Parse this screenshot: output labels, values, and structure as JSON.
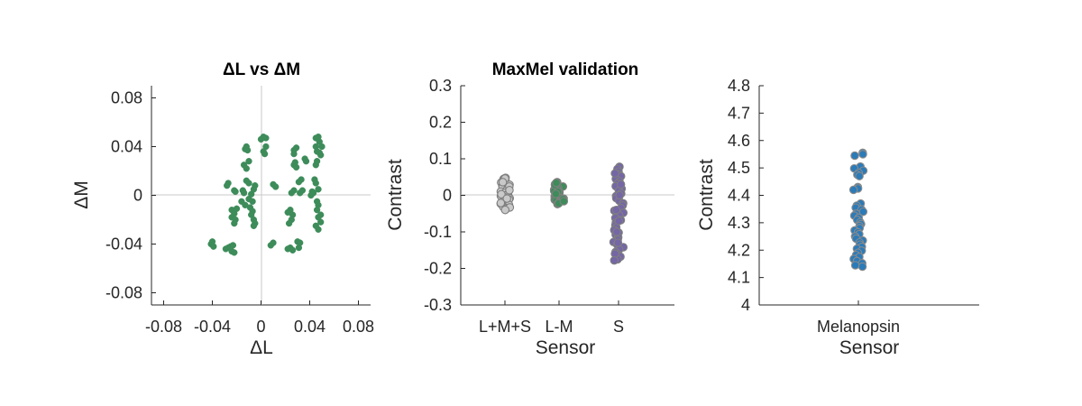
{
  "chart_data": [
    {
      "type": "scatter",
      "title": "ΔL vs ΔM",
      "xlabel": "ΔL",
      "ylabel": "ΔM",
      "xlim": [
        -0.09,
        0.09
      ],
      "ylim": [
        -0.09,
        0.09
      ],
      "xticks": [
        -0.08,
        -0.04,
        0,
        0.04,
        0.08
      ],
      "xtick_labels": [
        "-0.08",
        "-0.04",
        "0",
        "0.04",
        "0.08"
      ],
      "yticks": [
        -0.08,
        -0.04,
        0,
        0.04,
        0.08
      ],
      "ytick_labels": [
        "-0.08",
        "-0.04",
        "0",
        "0.04",
        "0.08"
      ],
      "reference_lines": [
        "x=0",
        "y=0"
      ],
      "grid": false,
      "series": [
        {
          "color": "#3d8c5a",
          "points": [
            [
              -0.041,
              -0.04
            ],
            [
              -0.039,
              -0.042
            ],
            [
              -0.04,
              -0.038
            ],
            [
              -0.029,
              -0.044
            ],
            [
              -0.027,
              -0.043
            ],
            [
              -0.025,
              -0.042
            ],
            [
              -0.024,
              -0.046
            ],
            [
              -0.022,
              -0.047
            ],
            [
              -0.023,
              -0.041
            ],
            [
              -0.028,
              0.008
            ],
            [
              -0.027,
              0.01
            ],
            [
              -0.022,
              0.004
            ],
            [
              -0.021,
              0.003
            ],
            [
              -0.015,
              0.004
            ],
            [
              -0.014,
              0.002
            ],
            [
              -0.024,
              -0.012
            ],
            [
              -0.022,
              -0.015
            ],
            [
              -0.024,
              -0.018
            ],
            [
              -0.021,
              -0.02
            ],
            [
              -0.022,
              -0.023
            ],
            [
              -0.02,
              -0.011
            ],
            [
              -0.016,
              -0.005
            ],
            [
              -0.013,
              -0.008
            ],
            [
              -0.013,
              0.038
            ],
            [
              -0.012,
              0.04
            ],
            [
              -0.011,
              0.037
            ],
            [
              -0.014,
              0.025
            ],
            [
              -0.012,
              0.022
            ],
            [
              -0.01,
              0.028
            ],
            [
              -0.012,
              0.012
            ],
            [
              -0.01,
              0.01
            ],
            [
              -0.01,
              -0.003
            ],
            [
              -0.008,
              0.001
            ],
            [
              -0.007,
              -0.005
            ],
            [
              -0.009,
              -0.01
            ],
            [
              -0.007,
              -0.013
            ],
            [
              -0.008,
              -0.016
            ],
            [
              -0.006,
              -0.02
            ],
            [
              -0.005,
              -0.023
            ],
            [
              -0.006,
              -0.025
            ],
            [
              -0.006,
              0.005
            ],
            [
              -0.005,
              0.008
            ],
            [
              0.0,
              0.046
            ],
            [
              0.002,
              0.048
            ],
            [
              0.004,
              0.047
            ],
            [
              0.002,
              0.036
            ],
            [
              0.003,
              0.034
            ],
            [
              0.004,
              0.04
            ],
            [
              0.008,
              -0.041
            ],
            [
              0.01,
              -0.039
            ],
            [
              0.01,
              0.009
            ],
            [
              0.012,
              0.007
            ],
            [
              0.022,
              -0.044
            ],
            [
              0.024,
              -0.043
            ],
            [
              0.026,
              -0.045
            ],
            [
              0.024,
              -0.012
            ],
            [
              0.022,
              -0.014
            ],
            [
              0.026,
              -0.016
            ],
            [
              0.025,
              -0.02
            ],
            [
              0.023,
              -0.023
            ],
            [
              0.025,
              0.002
            ],
            [
              0.027,
              0.004
            ],
            [
              0.027,
              0.037
            ],
            [
              0.029,
              0.039
            ],
            [
              0.027,
              0.034
            ],
            [
              0.027,
              0.025
            ],
            [
              0.028,
              0.027
            ],
            [
              0.029,
              0.023
            ],
            [
              0.031,
              0.011
            ],
            [
              0.033,
              0.013
            ],
            [
              0.032,
              0.002
            ],
            [
              0.034,
              0.004
            ],
            [
              0.03,
              -0.038
            ],
            [
              0.032,
              -0.039
            ],
            [
              0.031,
              -0.043
            ],
            [
              0.036,
              0.03
            ],
            [
              0.037,
              0.028
            ],
            [
              0.041,
              0.0
            ],
            [
              0.043,
              0.002
            ],
            [
              0.042,
              0.003
            ],
            [
              0.045,
              0.047
            ],
            [
              0.047,
              0.048
            ],
            [
              0.048,
              0.044
            ],
            [
              0.048,
              0.035
            ],
            [
              0.049,
              0.033
            ],
            [
              0.05,
              0.04
            ],
            [
              0.045,
              0.04
            ],
            [
              0.046,
              0.036
            ],
            [
              0.045,
              0.025
            ],
            [
              0.046,
              0.028
            ],
            [
              0.044,
              0.013
            ],
            [
              0.045,
              0.01
            ],
            [
              0.047,
              0.005
            ],
            [
              0.046,
              -0.005
            ],
            [
              0.047,
              -0.008
            ],
            [
              0.046,
              -0.012
            ],
            [
              0.047,
              -0.018
            ],
            [
              0.049,
              -0.016
            ],
            [
              0.045,
              -0.025
            ],
            [
              0.047,
              -0.028
            ],
            [
              0.049,
              -0.022
            ]
          ]
        }
      ]
    },
    {
      "type": "strip",
      "title": "MaxMel validation",
      "xlabel": "Sensor",
      "ylabel": "Contrast",
      "categories": [
        "L+M+S",
        "L-M",
        "S"
      ],
      "ylim": [
        -0.3,
        0.3
      ],
      "yticks": [
        -0.3,
        -0.2,
        -0.1,
        0,
        0.1,
        0.2,
        0.3
      ],
      "ytick_labels": [
        "-0.3",
        "-0.2",
        "-0.1",
        "0",
        "0.1",
        "0.2",
        "0.3"
      ],
      "reference_lines": [
        "y=0"
      ],
      "grid": false,
      "series": [
        {
          "category": "L+M+S",
          "color": "#c9c9c9",
          "edge_color": "#7f7f7f",
          "values": [
            0.048,
            0.045,
            0.042,
            0.038,
            0.035,
            0.032,
            0.029,
            0.026,
            0.022,
            0.019,
            0.016,
            0.013,
            0.01,
            0.007,
            0.004,
            0.001,
            -0.002,
            -0.005,
            -0.008,
            -0.011,
            -0.014,
            -0.017,
            -0.02,
            -0.023,
            -0.026,
            -0.029,
            -0.032,
            -0.035,
            -0.038,
            0.046,
            0.036,
            0.024,
            0.014,
            0.003,
            -0.009,
            -0.021,
            -0.033,
            -0.04
          ]
        },
        {
          "category": "L-M",
          "color": "#3d8c5a",
          "edge_color": "#7f7f7f",
          "values": [
            0.036,
            0.033,
            0.03,
            0.027,
            0.024,
            0.021,
            0.018,
            0.015,
            0.012,
            0.009,
            0.006,
            0.003,
            0.0,
            -0.003,
            -0.006,
            -0.009,
            -0.012,
            -0.015,
            -0.018,
            -0.021,
            -0.024,
            0.028,
            0.01,
            -0.01,
            -0.022,
            0.034,
            0.004,
            -0.016
          ]
        },
        {
          "category": "S",
          "color": "#7566a6",
          "edge_color": "#7f7f7f",
          "values": [
            0.078,
            0.072,
            0.065,
            0.058,
            0.052,
            0.045,
            0.038,
            0.032,
            0.025,
            0.018,
            0.012,
            0.005,
            -0.002,
            -0.008,
            -0.015,
            -0.022,
            -0.028,
            -0.035,
            -0.042,
            -0.048,
            -0.055,
            -0.062,
            -0.068,
            -0.075,
            -0.082,
            -0.088,
            -0.095,
            -0.102,
            -0.108,
            -0.115,
            -0.122,
            -0.128,
            -0.135,
            -0.142,
            -0.148,
            -0.155,
            -0.162,
            -0.168,
            -0.175,
            0.06,
            0.03,
            0.0,
            -0.04,
            -0.07,
            -0.1,
            -0.13,
            -0.16,
            -0.178
          ]
        }
      ]
    },
    {
      "type": "strip",
      "title": "",
      "xlabel": "Sensor",
      "ylabel": "Contrast",
      "categories": [
        "Melanopsin"
      ],
      "ylim": [
        4.0,
        4.8
      ],
      "yticks": [
        4.0,
        4.1,
        4.2,
        4.3,
        4.4,
        4.5,
        4.6,
        4.7,
        4.8
      ],
      "ytick_labels": [
        "4",
        "4.1",
        "4.2",
        "4.3",
        "4.4",
        "4.5",
        "4.6",
        "4.7",
        "4.8"
      ],
      "grid": false,
      "series": [
        {
          "category": "Melanopsin",
          "color": "#2b7bb9",
          "edge_color": "#8a8a8a",
          "values": [
            4.555,
            4.55,
            4.545,
            4.505,
            4.498,
            4.49,
            4.482,
            4.475,
            4.47,
            4.43,
            4.425,
            4.42,
            4.37,
            4.362,
            4.355,
            4.348,
            4.34,
            4.333,
            4.326,
            4.318,
            4.31,
            4.302,
            4.295,
            4.288,
            4.28,
            4.272,
            4.265,
            4.258,
            4.25,
            4.242,
            4.235,
            4.228,
            4.22,
            4.212,
            4.205,
            4.198,
            4.19,
            4.182,
            4.175,
            4.168,
            4.16,
            4.152,
            4.145,
            4.14
          ]
        }
      ]
    }
  ]
}
